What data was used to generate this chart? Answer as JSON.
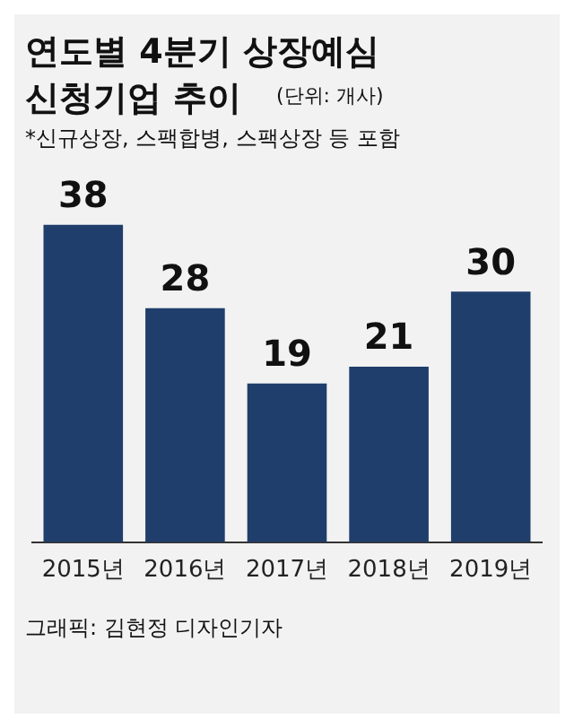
{
  "chart_data": {
    "type": "bar",
    "title": "연도별 4분기 상장예심 신청기업 추이",
    "subtitle": "*신규상장, 스팩합병, 스팩상장 등 포함",
    "categories": [
      "2015년",
      "2016년",
      "2017년",
      "2018년",
      "2019년"
    ],
    "values": [
      38,
      28,
      19,
      21,
      30
    ],
    "color": "#1f3e6b",
    "data_labels": true,
    "grid": false,
    "legend": false,
    "annotations": [
      "(단위: 개사)",
      "그래픽: 김현정 디자인기자"
    ]
  }
}
